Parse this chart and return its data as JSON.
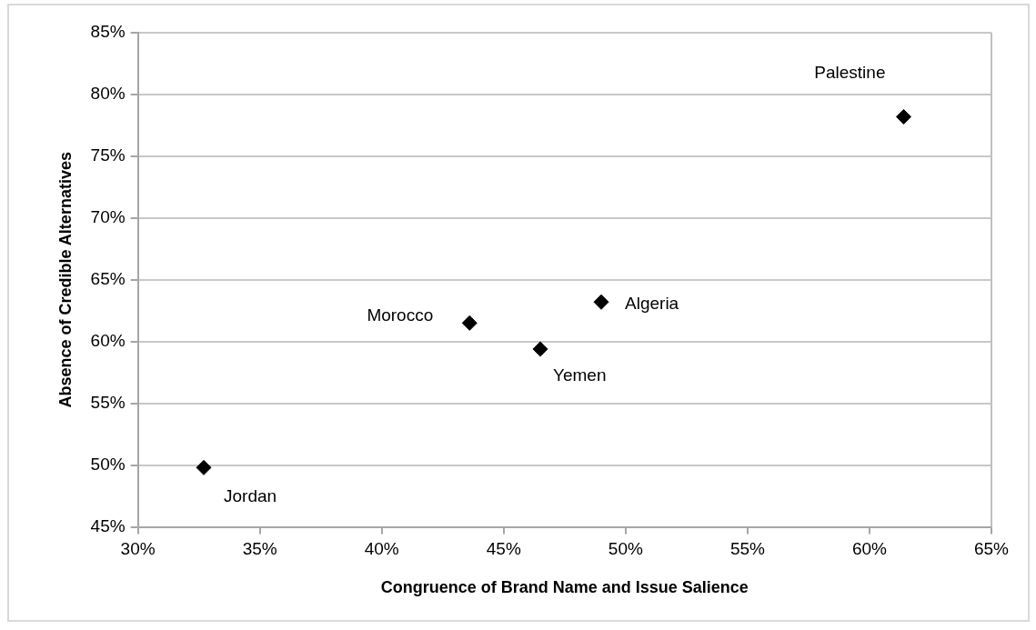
{
  "chart_data": {
    "type": "scatter",
    "xlabel": "Congruence of Brand Name and Issue Salience",
    "ylabel": "Absence of Credible Alternatives",
    "x": [
      32.7,
      43.6,
      46.5,
      49.0,
      61.4
    ],
    "values": [
      49.8,
      61.5,
      59.4,
      63.2,
      78.2
    ],
    "color": "#000000",
    "marker": "diamond",
    "grid": "y",
    "legend": false,
    "xlim": [
      30,
      65
    ],
    "ylim": [
      45,
      85
    ],
    "xticks": [
      {
        "value": 30,
        "label": "30%"
      },
      {
        "value": 35,
        "label": "35%"
      },
      {
        "value": 40,
        "label": "40%"
      },
      {
        "value": 45,
        "label": "45%"
      },
      {
        "value": 50,
        "label": "50%"
      },
      {
        "value": 55,
        "label": "55%"
      },
      {
        "value": 60,
        "label": "60%"
      },
      {
        "value": 65,
        "label": "65%"
      }
    ],
    "yticks": [
      {
        "value": 45,
        "label": "45%"
      },
      {
        "value": 50,
        "label": "50%"
      },
      {
        "value": 55,
        "label": "55%"
      },
      {
        "value": 60,
        "label": "60%"
      },
      {
        "value": 65,
        "label": "65%"
      },
      {
        "value": 70,
        "label": "70%"
      },
      {
        "value": 75,
        "label": "75%"
      },
      {
        "value": 80,
        "label": "80%"
      },
      {
        "value": 85,
        "label": "85%"
      }
    ],
    "annotations": [
      {
        "text": "Jordan",
        "x": 32.7,
        "y": 49.8
      },
      {
        "text": "Morocco",
        "x": 43.6,
        "y": 61.5
      },
      {
        "text": "Yemen",
        "x": 46.5,
        "y": 59.4
      },
      {
        "text": "Algeria",
        "x": 49.0,
        "y": 63.2
      },
      {
        "text": "Palestine",
        "x": 61.4,
        "y": 78.2
      }
    ]
  }
}
